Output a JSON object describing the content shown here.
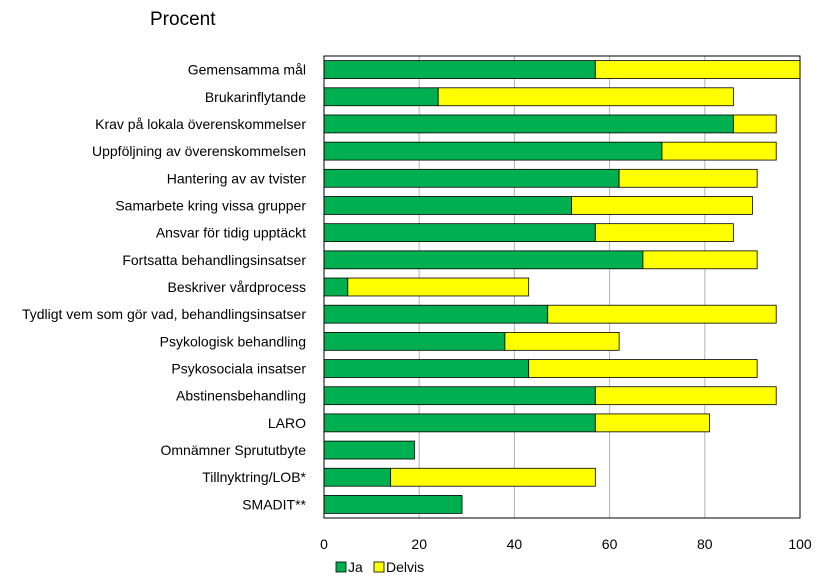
{
  "chart_data": {
    "type": "bar",
    "orientation": "horizontal",
    "stacked": true,
    "title": "Procent",
    "categories": [
      "Gemensamma mål",
      "Brukarinflytande",
      "Krav på lokala överenskommelser",
      "Uppföljning av överenskommelsen",
      "Hantering av av tvister",
      "Samarbete kring vissa grupper",
      "Ansvar för tidig upptäckt",
      "Fortsatta behandlingsinsatser",
      "Beskriver vårdprocess",
      "Tydligt vem som gör vad, behandlingsinsatser",
      "Psykologisk behandling",
      "Psykosociala insatser",
      "Abstinensbehandling",
      "LARO",
      "Omnämner Sprututbyte",
      "Tillnyktring/LOB*",
      "SMADIT**"
    ],
    "series": [
      {
        "name": "Ja",
        "color": "#00b050",
        "values": [
          57,
          24,
          86,
          71,
          62,
          52,
          57,
          67,
          5,
          47,
          38,
          43,
          57,
          57,
          19,
          14,
          29
        ]
      },
      {
        "name": "Delvis",
        "color": "#ffff00",
        "values": [
          43,
          62,
          9,
          24,
          29,
          38,
          29,
          24,
          38,
          48,
          24,
          48,
          38,
          24,
          0,
          43,
          0
        ]
      }
    ],
    "xlim": [
      0,
      100
    ],
    "xticks": [
      0,
      20,
      40,
      60,
      80,
      100
    ],
    "grid": true,
    "legend": "bottom"
  }
}
